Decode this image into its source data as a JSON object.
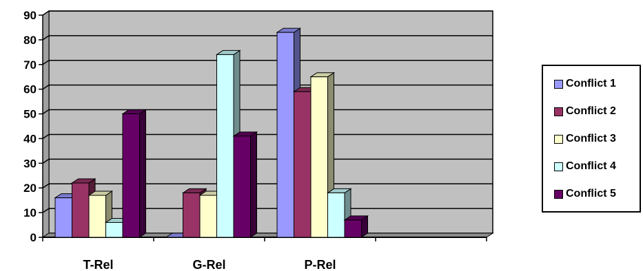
{
  "chart_data": {
    "type": "bar",
    "categories": [
      "T-Rel",
      "G-Rel",
      "P-Rel",
      ""
    ],
    "series": [
      {
        "name": "Conflict 1",
        "values": [
          16,
          0,
          83,
          null
        ],
        "color": "#9999FF"
      },
      {
        "name": "Conflict 2",
        "values": [
          22,
          18,
          59,
          null
        ],
        "color": "#993366"
      },
      {
        "name": "Conflict 3",
        "values": [
          17,
          17,
          65,
          null
        ],
        "color": "#FFFFCC"
      },
      {
        "name": "Conflict 4",
        "values": [
          6,
          74,
          18,
          null
        ],
        "color": "#CCFFFF"
      },
      {
        "name": "Conflict 5",
        "values": [
          50,
          41,
          7,
          null
        ],
        "color": "#660066"
      }
    ],
    "ylim": [
      0,
      90
    ],
    "yticks": [
      "0",
      "10",
      "20",
      "30",
      "40",
      "50",
      "60",
      "70",
      "80",
      "90"
    ],
    "grid": true,
    "legend_position": "right",
    "plot_background": "#C0C0C0"
  }
}
